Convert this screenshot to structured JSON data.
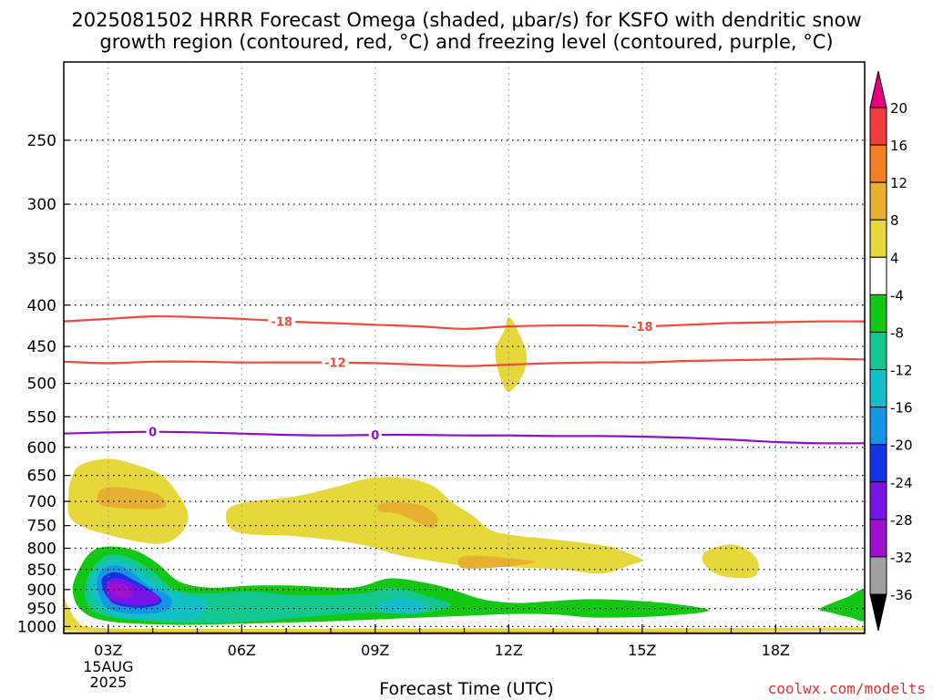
{
  "title_line1": "2025081502 HRRR Forecast Omega (shaded, μbar/s) for KSFO with dendritic snow",
  "title_line2": "growth region (contoured, red, °C) and freezing level (contoured, purple, °C)",
  "credit": "coolwx.com/modelts",
  "chart_data": {
    "type": "heatmap",
    "title": "2025081502 HRRR Forecast Omega (shaded, μbar/s) for KSFO with dendritic snow growth region (contoured, red, °C) and freezing level (contoured, purple, °C)",
    "xlabel": "Forecast Time (UTC)",
    "ylabel": "",
    "x_ticks": [
      "03Z",
      "06Z",
      "09Z",
      "12Z",
      "15Z",
      "18Z"
    ],
    "x_tick_hours": [
      3,
      6,
      9,
      12,
      15,
      18
    ],
    "x_date_label": [
      "15AUG",
      "2025"
    ],
    "xlim": [
      2,
      20
    ],
    "y_ticks": [
      250,
      300,
      350,
      400,
      450,
      500,
      550,
      600,
      650,
      700,
      750,
      800,
      850,
      900,
      950,
      1000
    ],
    "ylim": [
      1020,
      200
    ],
    "y_scale": "log-pressure",
    "grid": true,
    "colorbar": {
      "labels": [
        20,
        16,
        12,
        8,
        4,
        -4,
        -8,
        -12,
        -16,
        -20,
        -24,
        -28,
        -32,
        -36
      ],
      "colors": [
        "#e6007e",
        "#f03c3c",
        "#f08020",
        "#e8b030",
        "#e6d83a",
        "#ffffff",
        "#12c812",
        "#12c890",
        "#12c0c8",
        "#1496e6",
        "#1432e6",
        "#7814e6",
        "#a010d2",
        "#a0a0a0",
        "#000000"
      ]
    },
    "contours": [
      {
        "label": "-18",
        "color": "#f04a3a",
        "x": [
          2,
          3,
          4,
          5,
          6,
          7,
          8,
          9,
          10,
          11,
          12,
          13,
          14,
          15,
          16,
          17,
          18,
          19,
          20
        ],
        "y": [
          419,
          416,
          413,
          414,
          416,
          419,
          421,
          423,
          425,
          428,
          425,
          424,
          424,
          425,
          423,
          421,
          420,
          419,
          419
        ],
        "label_at": [
          6.9,
          15.0
        ]
      },
      {
        "label": "-12",
        "color": "#f04a3a",
        "x": [
          2,
          3,
          4,
          5,
          6,
          7,
          8,
          9,
          10,
          11,
          12,
          13,
          14,
          15,
          16,
          17,
          18,
          19,
          20
        ],
        "y": [
          470,
          472,
          470,
          470,
          471,
          471,
          471,
          472,
          474,
          476,
          474,
          472,
          471,
          471,
          469,
          468,
          467,
          466,
          467
        ],
        "label_at": [
          8.1
        ]
      },
      {
        "label": "0",
        "color": "#9010c8",
        "x": [
          2,
          3,
          4,
          5,
          6,
          7,
          8,
          9,
          10,
          11,
          12,
          13,
          14,
          15,
          16,
          17,
          18,
          19,
          20
        ],
        "y": [
          577,
          575,
          574,
          575,
          577,
          579,
          580,
          579,
          579,
          580,
          580,
          581,
          581,
          582,
          584,
          587,
          591,
          593,
          593
        ],
        "label_at": [
          4.0,
          9.0
        ]
      }
    ],
    "shaded_regions": [
      {
        "omega": "4 to 8",
        "color": "#e6d83a",
        "points": [
          [
            2.2,
            650
          ],
          [
            2.4,
            630
          ],
          [
            3.0,
            620
          ],
          [
            3.6,
            630
          ],
          [
            4.2,
            650
          ],
          [
            4.6,
            690
          ],
          [
            4.8,
            730
          ],
          [
            4.6,
            770
          ],
          [
            4.1,
            790
          ],
          [
            3.0,
            770
          ],
          [
            2.2,
            740
          ],
          [
            2.1,
            690
          ]
        ]
      },
      {
        "omega": "8 to 12",
        "color": "#e8b030",
        "points": [
          [
            2.8,
            680
          ],
          [
            3.1,
            672
          ],
          [
            3.6,
            676
          ],
          [
            4.1,
            685
          ],
          [
            4.3,
            705
          ],
          [
            4.1,
            715
          ],
          [
            3.2,
            713
          ],
          [
            2.8,
            705
          ]
        ]
      },
      {
        "omega": "4 to 8",
        "color": "#e6d83a",
        "points": [
          [
            5.7,
            715
          ],
          [
            6.2,
            700
          ],
          [
            7.2,
            690
          ],
          [
            8.1,
            672
          ],
          [
            8.9,
            655
          ],
          [
            9.7,
            655
          ],
          [
            10.3,
            670
          ],
          [
            10.7,
            700
          ],
          [
            11.2,
            730
          ],
          [
            11.6,
            760
          ],
          [
            12.2,
            772
          ],
          [
            13.0,
            780
          ],
          [
            14.2,
            795
          ],
          [
            14.7,
            812
          ],
          [
            15.0,
            828
          ],
          [
            14.7,
            840
          ],
          [
            14.1,
            860
          ],
          [
            13.2,
            850
          ],
          [
            12.2,
            845
          ],
          [
            11.0,
            840
          ],
          [
            10.3,
            830
          ],
          [
            9.5,
            815
          ],
          [
            8.6,
            790
          ],
          [
            7.2,
            773
          ],
          [
            6.1,
            768
          ],
          [
            5.7,
            750
          ]
        ]
      },
      {
        "omega": "8 to 12",
        "color": "#e8b030",
        "points": [
          [
            9.1,
            705
          ],
          [
            9.6,
            702
          ],
          [
            10.1,
            710
          ],
          [
            10.4,
            733
          ],
          [
            10.3,
            755
          ],
          [
            10.0,
            745
          ],
          [
            9.5,
            725
          ],
          [
            9.1,
            720
          ]
        ]
      },
      {
        "omega": "8 to 12",
        "color": "#e8b030",
        "points": [
          [
            10.9,
            823
          ],
          [
            11.2,
            817
          ],
          [
            12.0,
            823
          ],
          [
            12.6,
            832
          ],
          [
            12.0,
            842
          ],
          [
            11.2,
            848
          ],
          [
            10.9,
            843
          ]
        ]
      },
      {
        "omega": "4 to 8",
        "color": "#e6d83a",
        "points": [
          [
            11.7,
            455
          ],
          [
            11.9,
            430
          ],
          [
            12.0,
            414
          ],
          [
            12.2,
            430
          ],
          [
            12.4,
            460
          ],
          [
            12.3,
            490
          ],
          [
            12.0,
            512
          ],
          [
            11.8,
            490
          ]
        ]
      },
      {
        "omega": "4 to 8",
        "color": "#e6d83a",
        "points": [
          [
            16.4,
            810
          ],
          [
            16.9,
            792
          ],
          [
            17.3,
            800
          ],
          [
            17.6,
            830
          ],
          [
            17.5,
            868
          ],
          [
            16.8,
            866
          ],
          [
            16.4,
            838
          ]
        ]
      },
      {
        "omega": "4 to 8",
        "color": "#e6d83a",
        "points": [
          [
            2.0,
            925
          ],
          [
            2.1,
            945
          ],
          [
            2.3,
            985
          ],
          [
            2.6,
            1002
          ],
          [
            4.0,
            1006
          ],
          [
            8.0,
            1006
          ],
          [
            12.0,
            1005
          ],
          [
            16.0,
            1005
          ],
          [
            20.0,
            1003
          ],
          [
            20.0,
            1012
          ],
          [
            2.0,
            1012
          ]
        ]
      },
      {
        "omega": "-4 to -8",
        "color": "#12c812",
        "points": [
          [
            2.3,
            860
          ],
          [
            2.6,
            810
          ],
          [
            3.0,
            796
          ],
          [
            3.6,
            805
          ],
          [
            4.1,
            835
          ],
          [
            4.6,
            880
          ],
          [
            5.3,
            895
          ],
          [
            6.2,
            890
          ],
          [
            7.2,
            890
          ],
          [
            8.5,
            895
          ],
          [
            9.3,
            872
          ],
          [
            10.0,
            880
          ],
          [
            10.6,
            895
          ],
          [
            11.4,
            925
          ],
          [
            12.2,
            935
          ],
          [
            13.0,
            930
          ],
          [
            14.0,
            925
          ],
          [
            15.5,
            935
          ],
          [
            16.5,
            955
          ],
          [
            15.5,
            970
          ],
          [
            14.0,
            975
          ],
          [
            13.0,
            966
          ],
          [
            12.0,
            965
          ],
          [
            11.0,
            970
          ],
          [
            10.0,
            975
          ],
          [
            8.0,
            985
          ],
          [
            6.0,
            992
          ],
          [
            4.5,
            995
          ],
          [
            3.0,
            985
          ],
          [
            2.4,
            955
          ],
          [
            2.2,
            905
          ]
        ]
      },
      {
        "omega": "-4 to -8",
        "color": "#12c812",
        "points": [
          [
            19.0,
            950
          ],
          [
            19.6,
            920
          ],
          [
            20.0,
            902
          ],
          [
            20.0,
            980
          ],
          [
            19.7,
            975
          ],
          [
            19.2,
            960
          ]
        ]
      },
      {
        "omega": "-8 to -12",
        "color": "#12c890",
        "points": [
          [
            2.5,
            880
          ],
          [
            2.7,
            840
          ],
          [
            3.0,
            815
          ],
          [
            3.5,
            823
          ],
          [
            4.0,
            855
          ],
          [
            4.5,
            900
          ],
          [
            5.2,
            910
          ],
          [
            6.2,
            905
          ],
          [
            7.3,
            915
          ],
          [
            8.7,
            910
          ],
          [
            9.4,
            895
          ],
          [
            10.1,
            915
          ],
          [
            10.7,
            940
          ],
          [
            10.0,
            963
          ],
          [
            8.7,
            962
          ],
          [
            7.3,
            975
          ],
          [
            6.3,
            985
          ],
          [
            5.0,
            990
          ],
          [
            3.6,
            982
          ],
          [
            2.8,
            965
          ],
          [
            2.5,
            930
          ]
        ]
      },
      {
        "omega": "-12 to -16",
        "color": "#12c0c8",
        "points": [
          [
            2.6,
            880
          ],
          [
            2.8,
            842
          ],
          [
            3.1,
            828
          ],
          [
            3.5,
            840
          ],
          [
            3.9,
            870
          ],
          [
            4.4,
            905
          ],
          [
            5.2,
            930
          ],
          [
            4.9,
            978
          ],
          [
            3.7,
            978
          ],
          [
            3.0,
            960
          ],
          [
            2.7,
            930
          ]
        ]
      },
      {
        "omega": "-12 to -16",
        "color": "#12c0c8",
        "points": [
          [
            9.1,
            935
          ],
          [
            9.7,
            922
          ],
          [
            10.2,
            945
          ],
          [
            9.8,
            965
          ],
          [
            9.2,
            955
          ]
        ]
      },
      {
        "omega": "-16 to -20",
        "color": "#1496e6",
        "points": [
          [
            2.75,
            875
          ],
          [
            2.9,
            848
          ],
          [
            3.2,
            840
          ],
          [
            3.55,
            858
          ],
          [
            3.9,
            890
          ],
          [
            4.4,
            920
          ],
          [
            4.3,
            955
          ],
          [
            3.6,
            965
          ],
          [
            3.0,
            950
          ],
          [
            2.8,
            915
          ]
        ]
      },
      {
        "omega": "-20 to -24",
        "color": "#1432e6",
        "points": [
          [
            2.85,
            878
          ],
          [
            3.0,
            860
          ],
          [
            3.25,
            858
          ],
          [
            3.6,
            878
          ],
          [
            4.0,
            905
          ],
          [
            4.2,
            932
          ],
          [
            3.8,
            948
          ],
          [
            3.2,
            940
          ],
          [
            2.95,
            915
          ]
        ]
      },
      {
        "omega": "-24 to -28",
        "color": "#7814e6",
        "points": [
          [
            2.95,
            885
          ],
          [
            3.1,
            872
          ],
          [
            3.35,
            875
          ],
          [
            3.7,
            892
          ],
          [
            4.1,
            915
          ],
          [
            4.1,
            935
          ],
          [
            3.6,
            942
          ],
          [
            3.1,
            930
          ],
          [
            2.95,
            905
          ]
        ]
      },
      {
        "omega": "-28 to -32",
        "color": "#a010d2",
        "points": [
          [
            3.0,
            888
          ],
          [
            3.2,
            880
          ],
          [
            3.45,
            893
          ],
          [
            3.55,
            915
          ],
          [
            3.3,
            922
          ],
          [
            3.05,
            907
          ]
        ]
      },
      {
        "omega": "terrain",
        "color": "#a0522d",
        "points": [
          [
            2.0,
            1016
          ],
          [
            20.0,
            1016
          ],
          [
            20.0,
            1020
          ],
          [
            2.0,
            1020
          ]
        ]
      }
    ]
  }
}
